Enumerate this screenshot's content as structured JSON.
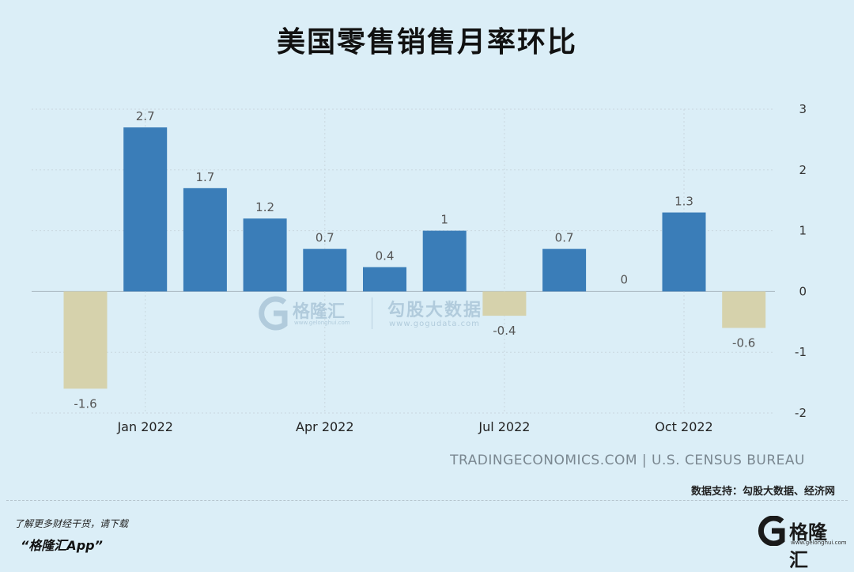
{
  "title": "美国零售销售月率环比",
  "chart_data": {
    "type": "bar",
    "categories": [
      "Dec 2021",
      "Jan 2022",
      "Feb 2022",
      "Mar 2022",
      "Apr 2022",
      "May 2022",
      "Jun 2022",
      "Jul 2022",
      "Aug 2022",
      "Sep 2022",
      "Oct 2022",
      "Nov 2022"
    ],
    "values": [
      -1.6,
      2.7,
      1.7,
      1.2,
      0.7,
      0.4,
      1,
      -0.4,
      0.7,
      0,
      1.3,
      -0.6
    ],
    "value_labels": [
      "-1.6",
      "2.7",
      "1.7",
      "1.2",
      "0.7",
      "0.4",
      "1",
      "-0.4",
      "0.7",
      "0",
      "1.3",
      "-0.6"
    ],
    "x_tick_labels": [
      "Jan 2022",
      "Apr 2022",
      "Jul 2022",
      "Oct 2022"
    ],
    "x_tick_categories": [
      "Jan 2022",
      "Apr 2022",
      "Jul 2022",
      "Oct 2022"
    ],
    "y_ticks": [
      "3",
      "2",
      "1",
      "0",
      "-1",
      "-2"
    ],
    "ylim": [
      -2,
      3
    ],
    "y_axis_side": "right",
    "grid": true,
    "colors": {
      "positive": "#3a7db8",
      "negative": "#d6d2ac"
    },
    "source": "TRADINGECONOMICS.COM | U.S. CENSUS BUREAU"
  },
  "support_text": "数据支持：勾股大数据、经济网",
  "footer": {
    "line1": "了解更多财经干货，请下载",
    "line2": "“格隆汇App”"
  },
  "logo": {
    "name": "格隆汇",
    "url": "www.gelonghui.com"
  },
  "watermark": {
    "name1": "格隆汇",
    "url1": "www.gelonghui.com",
    "name2": "勾股大数据",
    "url2": "www.gogudata.com"
  }
}
